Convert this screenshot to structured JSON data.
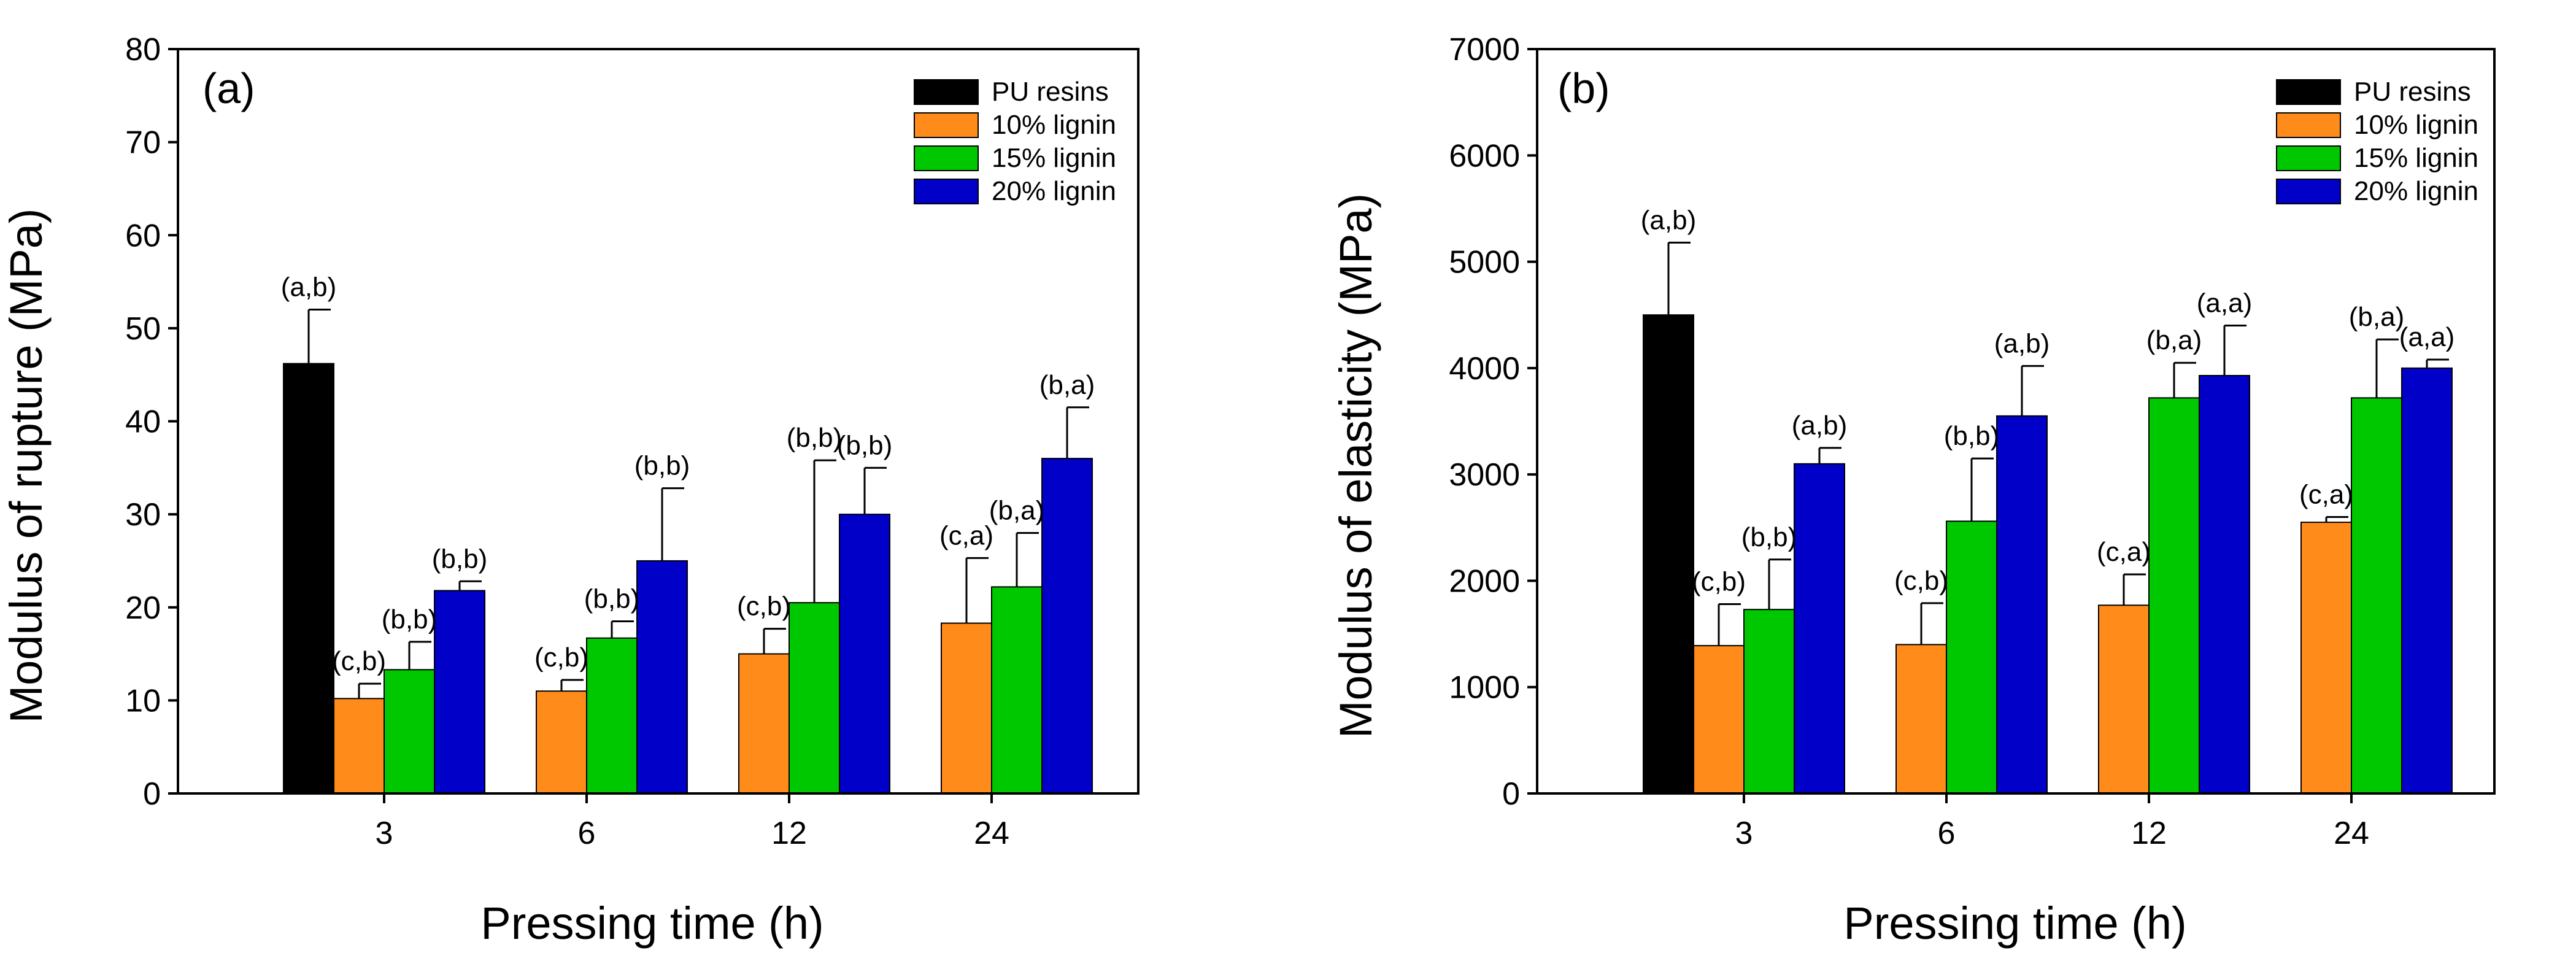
{
  "chart_data": [
    {
      "type": "bar",
      "panel_label": "(a)",
      "xlabel": "Pressing time (h)",
      "ylabel": "Modulus of rupture (MPa)",
      "ylim": [
        0,
        80
      ],
      "yticks": [
        0,
        10,
        20,
        30,
        40,
        50,
        60,
        70,
        80
      ],
      "categories": [
        "3",
        "6",
        "12",
        "24"
      ],
      "legend_position": "top-right",
      "series": [
        {
          "name": "PU resins",
          "color": "#000000",
          "values": [
            46.2,
            null,
            null,
            null
          ],
          "errors": [
            5.8,
            null,
            null,
            null
          ],
          "labels": [
            "(a,b)",
            null,
            null,
            null
          ]
        },
        {
          "name": "10% lignin",
          "color": "#FF8C1A",
          "values": [
            10.2,
            11.0,
            15.0,
            18.3
          ],
          "errors": [
            1.6,
            1.2,
            2.7,
            7.0
          ],
          "labels": [
            "(c,b)",
            "(c,b)",
            "(c,b)",
            "(c,a)"
          ]
        },
        {
          "name": "15% lignin",
          "color": "#00C800",
          "values": [
            13.3,
            16.7,
            20.5,
            22.2
          ],
          "errors": [
            3.0,
            1.8,
            15.3,
            5.8
          ],
          "labels": [
            "(b,b)",
            "(b,b)",
            "(b,b)",
            "(b,a)"
          ]
        },
        {
          "name": "20% lignin",
          "color": "#0000C8",
          "values": [
            21.8,
            25.0,
            30.0,
            36.0
          ],
          "errors": [
            1.0,
            7.8,
            5.0,
            5.5
          ],
          "labels": [
            "(b,b)",
            "(b,b)",
            "(b,b)",
            "(b,a)"
          ]
        }
      ]
    },
    {
      "type": "bar",
      "panel_label": "(b)",
      "xlabel": "Pressing time (h)",
      "ylabel": "Modulus of elasticity (MPa)",
      "ylim": [
        0,
        7000
      ],
      "yticks": [
        0,
        1000,
        2000,
        3000,
        4000,
        5000,
        6000,
        7000
      ],
      "categories": [
        "3",
        "6",
        "12",
        "24"
      ],
      "legend_position": "top-right",
      "series": [
        {
          "name": "PU resins",
          "color": "#000000",
          "values": [
            4500,
            null,
            null,
            null
          ],
          "errors": [
            680,
            null,
            null,
            null
          ],
          "labels": [
            "(a,b)",
            null,
            null,
            null
          ]
        },
        {
          "name": "10% lignin",
          "color": "#FF8C1A",
          "values": [
            1390,
            1400,
            1770,
            2550
          ],
          "errors": [
            390,
            390,
            290,
            50
          ],
          "labels": [
            "(c,b)",
            "(c,b)",
            "(c,a)",
            "(c,a)"
          ]
        },
        {
          "name": "15% lignin",
          "color": "#00C800",
          "values": [
            1730,
            2560,
            3720,
            3720
          ],
          "errors": [
            470,
            590,
            330,
            550
          ],
          "labels": [
            "(b,b)",
            "(b,b)",
            "(b,a)",
            "(b,a)"
          ]
        },
        {
          "name": "20% lignin",
          "color": "#0000C8",
          "values": [
            3100,
            3550,
            3930,
            4000
          ],
          "errors": [
            150,
            470,
            470,
            80
          ],
          "labels": [
            "(a,b)",
            "(a,b)",
            "(a,a)",
            "(a,a)"
          ]
        }
      ]
    }
  ]
}
